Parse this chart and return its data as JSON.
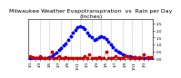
{
  "title": "Milwaukee Weather Evapotranspiration  vs  Rain per Day\n(Inches)",
  "background": "#ffffff",
  "et_color": "#0000ff",
  "rain_color": "#cc0000",
  "grid_color": "#999999",
  "xlim": [
    0,
    53
  ],
  "ylim": [
    0.0,
    2.8
  ],
  "yticks": [
    0.0,
    0.5,
    1.0,
    1.5,
    2.0,
    2.5
  ],
  "et_x": [
    1,
    2,
    3,
    4,
    5,
    6,
    7,
    8,
    9,
    10,
    11,
    12,
    13,
    14,
    15,
    16,
    17,
    18,
    19,
    20,
    21,
    22,
    23,
    24,
    25,
    26,
    27,
    28,
    29,
    30,
    31,
    32,
    33,
    34,
    35,
    36,
    37,
    38,
    39,
    40,
    41,
    42,
    43,
    44,
    45,
    46,
    47,
    48,
    49,
    50,
    51,
    52
  ],
  "et_y": [
    0.05,
    0.05,
    0.05,
    0.05,
    0.05,
    0.05,
    0.05,
    0.05,
    0.1,
    0.15,
    0.3,
    0.45,
    0.6,
    0.75,
    0.95,
    1.1,
    1.35,
    1.6,
    1.85,
    2.05,
    2.2,
    2.3,
    2.25,
    2.1,
    1.85,
    1.65,
    1.5,
    1.35,
    1.4,
    1.5,
    1.6,
    1.55,
    1.4,
    1.2,
    1.0,
    0.8,
    0.65,
    0.5,
    0.4,
    0.3,
    0.25,
    0.2,
    0.15,
    0.1,
    0.1,
    0.05,
    0.05,
    0.05,
    0.05,
    0.05,
    0.05,
    0.05
  ],
  "rain_x": [
    1,
    2,
    3,
    4,
    5,
    6,
    7,
    8,
    9,
    10,
    11,
    12,
    13,
    14,
    15,
    16,
    17,
    18,
    19,
    20,
    21,
    22,
    23,
    24,
    25,
    26,
    27,
    28,
    29,
    30,
    31,
    32,
    33,
    34,
    35,
    36,
    37,
    38,
    39,
    40,
    41,
    42,
    43,
    44,
    45,
    46,
    47,
    48,
    49,
    50,
    51,
    52
  ],
  "rain_y": [
    0.15,
    0.1,
    0.05,
    0.05,
    0.2,
    0.05,
    0.05,
    0.05,
    0.05,
    0.5,
    0.05,
    0.05,
    0.2,
    0.05,
    0.05,
    0.1,
    0.05,
    0.05,
    0.05,
    0.05,
    0.05,
    0.05,
    0.05,
    0.2,
    0.05,
    0.3,
    0.05,
    0.05,
    0.05,
    0.1,
    0.05,
    0.05,
    0.5,
    0.05,
    0.05,
    0.05,
    0.2,
    0.05,
    0.05,
    0.05,
    0.15,
    0.2,
    0.05,
    0.05,
    0.1,
    0.05,
    0.1,
    0.05,
    0.3,
    0.05,
    0.1,
    0.1
  ],
  "vgrid_x": [
    5,
    9,
    14,
    18,
    22,
    27,
    31,
    35,
    40,
    44,
    48
  ],
  "xtick_positions": [
    1,
    3,
    5,
    7,
    9,
    11,
    13,
    15,
    17,
    19,
    21,
    23,
    25,
    27,
    29,
    31,
    33,
    35,
    37,
    39,
    41,
    43,
    45,
    47,
    49,
    51
  ],
  "xtick_labels": [
    "1/1",
    "",
    "1/3",
    "",
    "1/5",
    "",
    "1/7",
    "",
    "1/9",
    "",
    "1/11",
    "",
    "1/1",
    "",
    "1/3",
    "",
    "1/5",
    "",
    "1/7",
    "",
    "1/9",
    "",
    "1/11",
    "",
    "1/1",
    ""
  ],
  "title_fontsize": 4.5,
  "tick_fontsize": 3.0,
  "linewidth": 1.0,
  "markersize": 1.8
}
